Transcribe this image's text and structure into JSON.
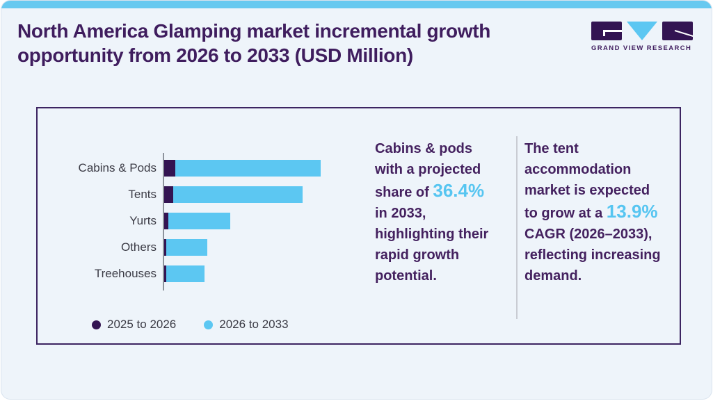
{
  "colors": {
    "accent_blue": "#5cc7f2",
    "dark_purple": "#331452",
    "title_purple": "#3f1d5e",
    "panel_border": "#3c2461",
    "card_background": "#eef4fa",
    "label_gray": "#3b3b45"
  },
  "header": {
    "title_line1": "North America Glamping market incremental growth",
    "title_line2": "opportunity from 2026 to 2033 (USD Million)",
    "logo_brand": "GRAND VIEW RESEARCH"
  },
  "chart_data": {
    "type": "bar",
    "orientation": "horizontal",
    "stacked": true,
    "title": "",
    "xlabel": "",
    "ylabel": "",
    "value_axis_visible": false,
    "units": "relative bar length (no numeric axis shown), max stacked bar = 100",
    "legend_position": "bottom",
    "categories": [
      "Cabins & Pods",
      "Tents",
      "Yurts",
      "Others",
      "Treehouses"
    ],
    "series": [
      {
        "name": "2025 to 2026",
        "color": "#331452",
        "values": [
          7.1,
          5.6,
          2.8,
          1.5,
          1.3
        ]
      },
      {
        "name": "2026 to 2033",
        "color": "#5cc7f2",
        "values": [
          92.9,
          82.8,
          39.6,
          25.9,
          24.5
        ]
      }
    ]
  },
  "legend": {
    "items": [
      {
        "label": "2025 to 2026",
        "color": "#331452"
      },
      {
        "label": "2026 to 2033",
        "color": "#5cc7f2"
      }
    ]
  },
  "insights": [
    {
      "name": "cabins-pods-insight",
      "highlight_color": "#56c5f1",
      "full_text": "Cabins & pods with a projected share of 36.4% in 2033, highlighting their rapid growth potential.",
      "lines": [
        [
          {
            "t": "Cabins & pods",
            "h": false
          }
        ],
        [
          {
            "t": "with a projected",
            "h": false
          }
        ],
        [
          {
            "t": "share of ",
            "h": false
          },
          {
            "t": "36.4%",
            "h": true
          }
        ],
        [
          {
            "t": "in 2033,",
            "h": false
          }
        ],
        [
          {
            "t": "highlighting their",
            "h": false
          }
        ],
        [
          {
            "t": "rapid growth",
            "h": false
          }
        ],
        [
          {
            "t": "potential.",
            "h": false
          }
        ]
      ]
    },
    {
      "name": "tent-insight",
      "highlight_color": "#56c5f1",
      "full_text": "The tent accommodation market is expected to grow at a 13.9% CAGR (2026–2033), reflecting increasing demand.",
      "lines": [
        [
          {
            "t": "The tent",
            "h": false
          }
        ],
        [
          {
            "t": "accommodation",
            "h": false
          }
        ],
        [
          {
            "t": "market is expected",
            "h": false
          }
        ],
        [
          {
            "t": "to grow at a ",
            "h": false
          },
          {
            "t": "13.9%",
            "h": true
          }
        ],
        [
          {
            "t": "CAGR (2026–2033),",
            "h": false
          }
        ],
        [
          {
            "t": "reflecting increasing",
            "h": false
          }
        ],
        [
          {
            "t": "demand.",
            "h": false
          }
        ]
      ]
    }
  ]
}
